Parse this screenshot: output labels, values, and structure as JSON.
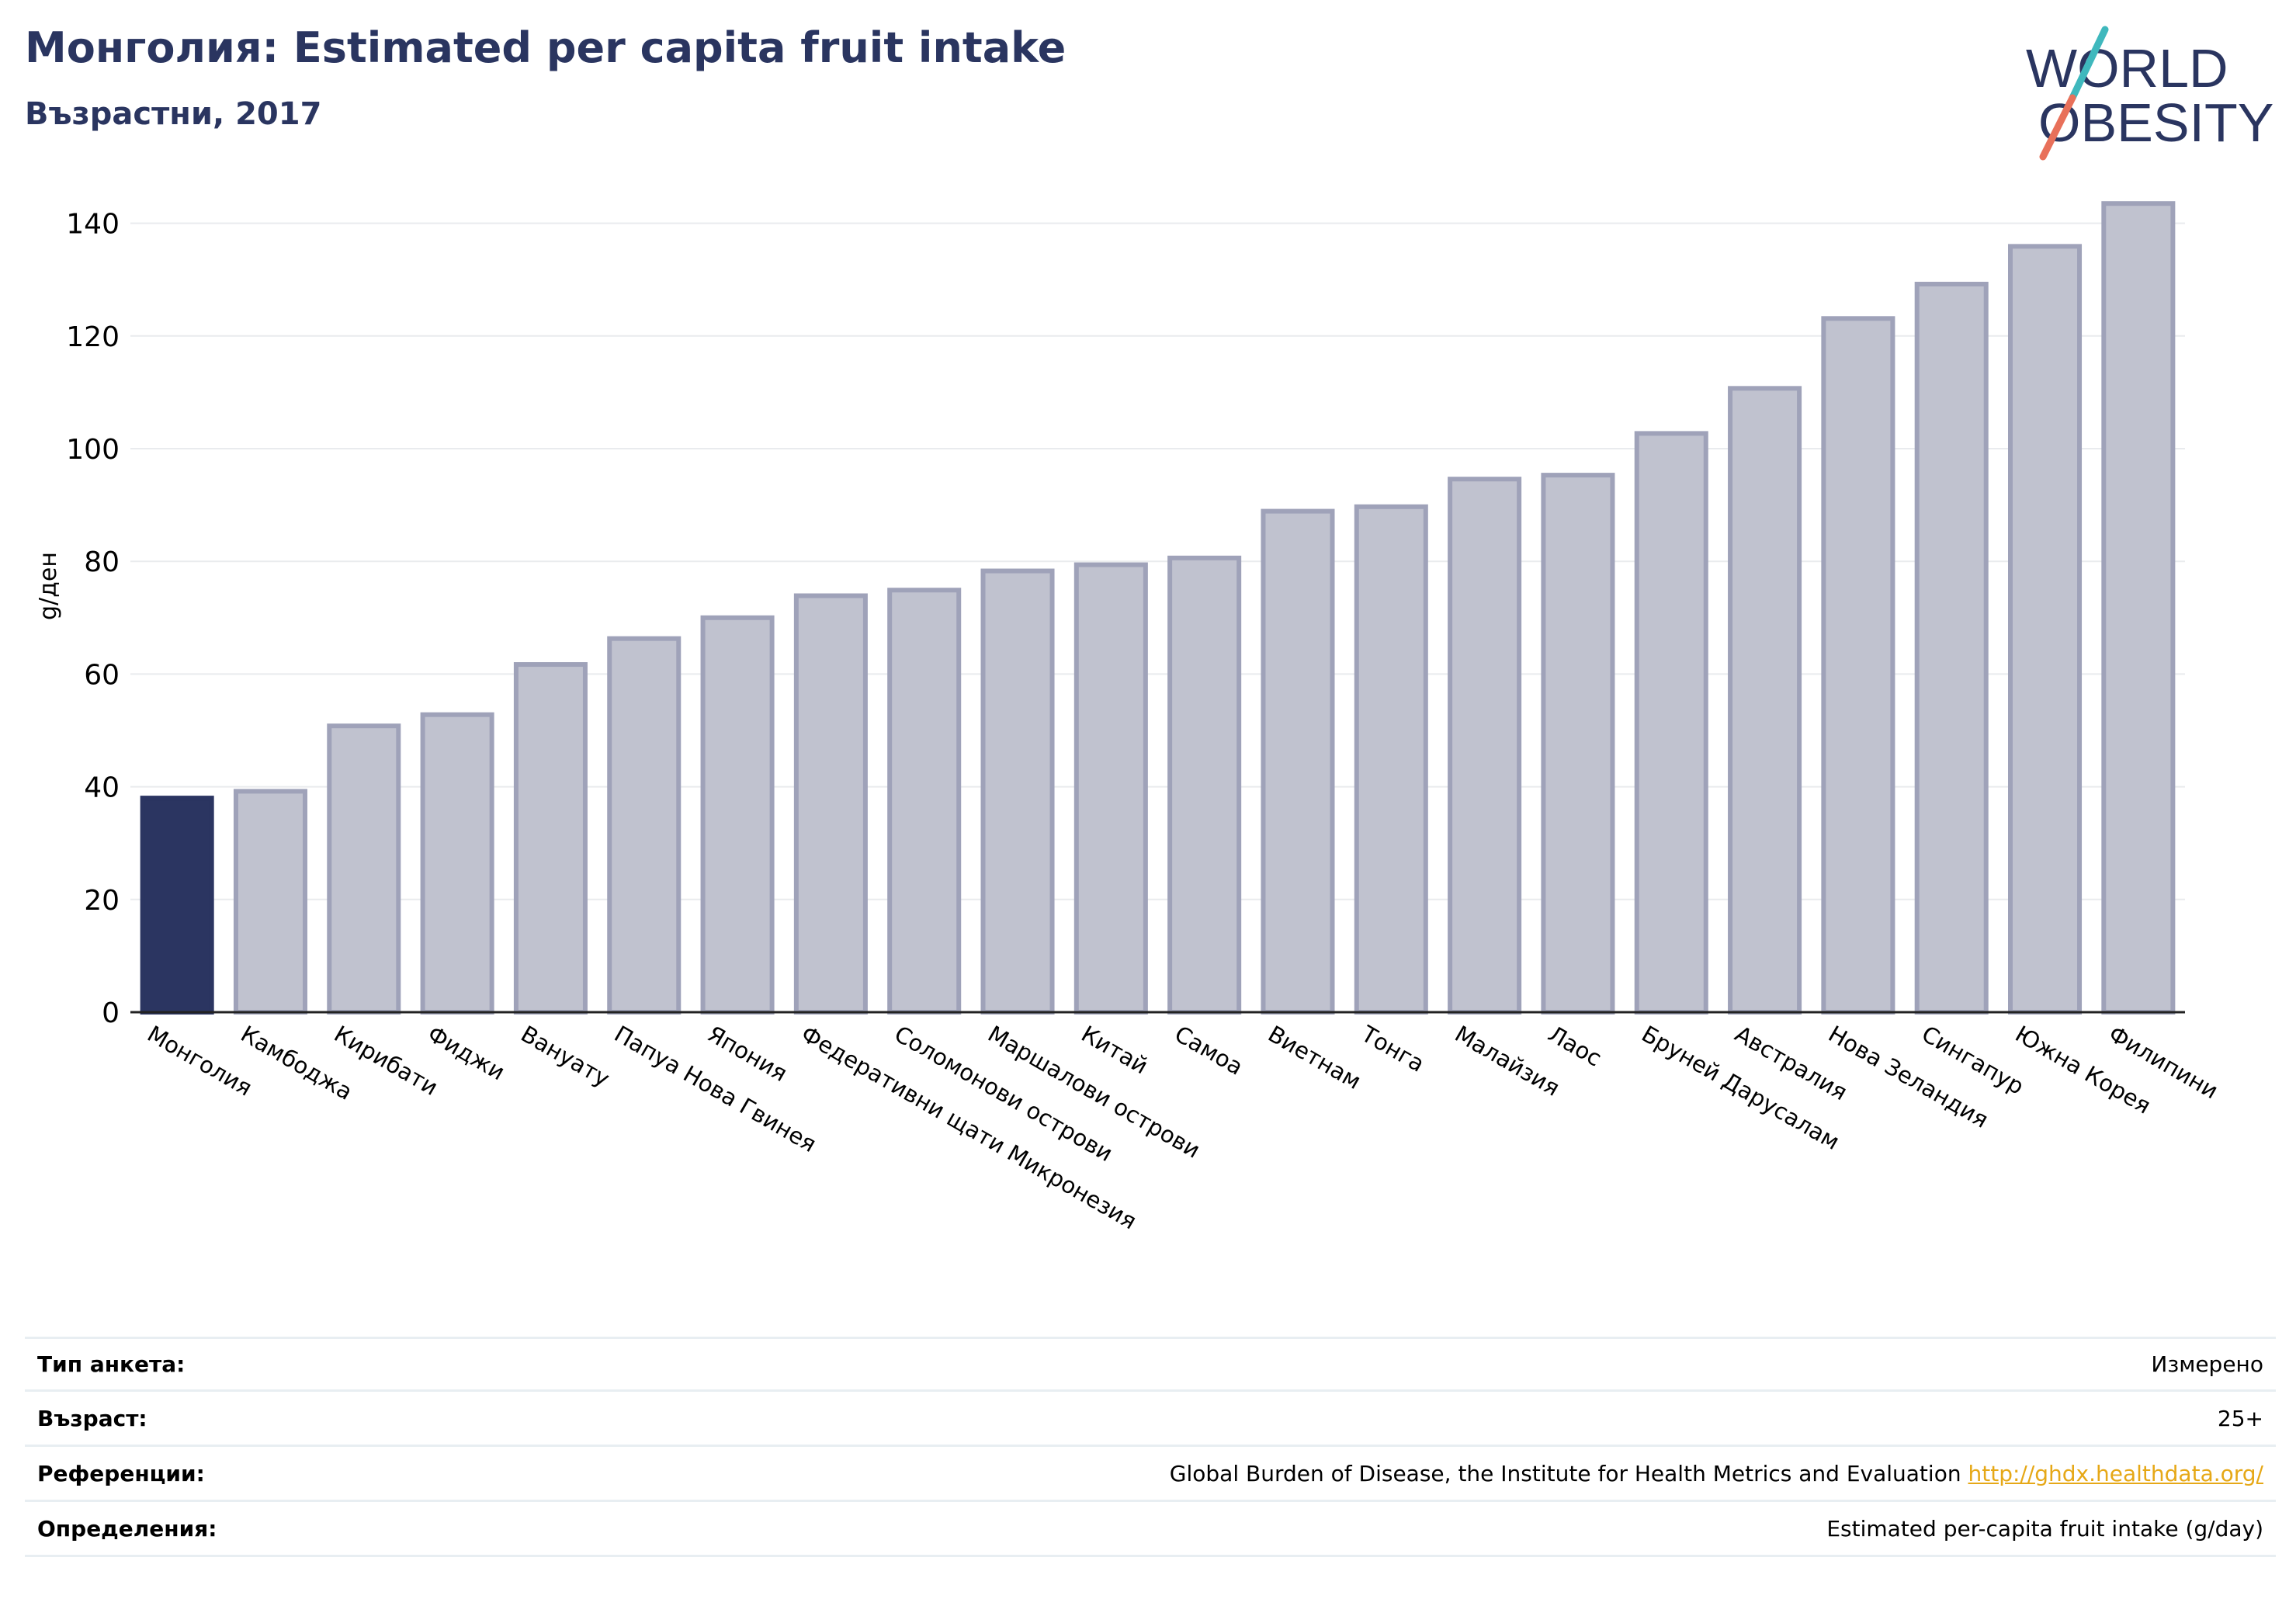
{
  "header": {
    "title": "Монголия: Estimated per capita fruit intake",
    "subtitle": "Възрастни, 2017"
  },
  "logo": {
    "line1": "WORLD",
    "line2": "OBESITY",
    "colors": {
      "text": "#2a3560",
      "slash_top": "#3fb8bd",
      "slash_bottom": "#e8705a"
    }
  },
  "chart_data": {
    "type": "bar",
    "title": "Монголия: Estimated per capita fruit intake",
    "subtitle": "Възрастни, 2017",
    "xlabel": "",
    "ylabel": "g/ден",
    "ylim": [
      0,
      145
    ],
    "yticks": [
      0,
      20,
      40,
      60,
      80,
      100,
      120,
      140
    ],
    "grid": true,
    "highlight": "Монголия",
    "colors": {
      "highlight": "#2b3561",
      "bar_fill": "#c0c2cf",
      "bar_stroke": "#9fa2b9",
      "grid": "#e9ebee",
      "axis": "#222222"
    },
    "categories": [
      "Монголия",
      "Камбоджа",
      "Кирибати",
      "Фиджи",
      "Вануату",
      "Папуа Нова Гвинея",
      "Япония",
      "Федеративни щати Микронезия",
      "Соломонови острови",
      "Маршалови острови",
      "Китай",
      "Самоа",
      "Виетнам",
      "Тонга",
      "Малайзия",
      "Лаос",
      "Бруней Дарусалам",
      "Австралия",
      "Нова Зеландия",
      "Сингапур",
      "Южна Корея",
      "Филипини"
    ],
    "values": [
      38,
      39.2,
      50.8,
      52.8,
      61.7,
      66.3,
      70,
      73.9,
      74.9,
      78.3,
      79.4,
      80.6,
      88.9,
      89.7,
      94.6,
      95.3,
      102.7,
      110.7,
      123.1,
      129.2,
      135.9,
      143.5
    ]
  },
  "info": {
    "survey_label": "Тип анкета:",
    "survey_value": "Измерено",
    "age_label": "Възраст:",
    "age_value": "25+",
    "refs_label": "Референции:",
    "refs_text": "Global Burden of Disease, the Institute for Health Metrics and Evaluation",
    "refs_link": "http://ghdx.healthdata.org/",
    "defs_label": "Определения:",
    "defs_value": "Estimated per-capita fruit intake (g/day)"
  }
}
